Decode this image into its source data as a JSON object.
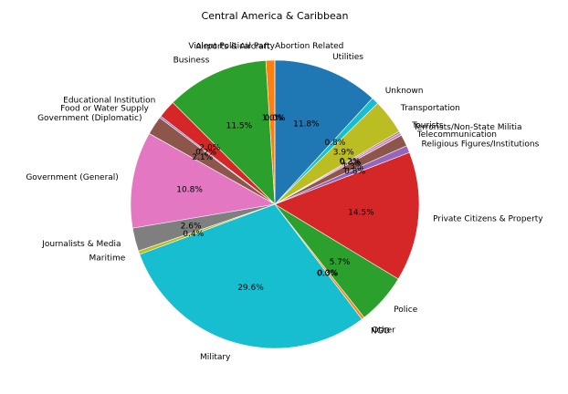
{
  "chart_data": {
    "type": "pie",
    "title": "Central America & Caribbean",
    "start_angle_deg": 90,
    "direction": "counterclockwise",
    "slices": [
      {
        "label": "Abortion Related",
        "value": 0.0,
        "pct_label": "0.0%",
        "color": "#1f77b4"
      },
      {
        "label": "Airports & Aircraft",
        "value": 1.0,
        "pct_label": "1.0%",
        "color": "#ff7f0e"
      },
      {
        "label": "Business",
        "value": 11.5,
        "pct_label": "11.5%",
        "color": "#2ca02c"
      },
      {
        "label": "Educational Institution",
        "value": 2.0,
        "pct_label": "2.0%",
        "color": "#d62728"
      },
      {
        "label": "Food or Water Supply",
        "value": 0.2,
        "pct_label": "0.2%",
        "color": "#9467bd"
      },
      {
        "label": "Government (Diplomatic)",
        "value": 2.1,
        "pct_label": "2.1%",
        "color": "#8c564b"
      },
      {
        "label": "Government (General)",
        "value": 10.8,
        "pct_label": "10.8%",
        "color": "#e377c2"
      },
      {
        "label": "Journalists & Media",
        "value": 2.6,
        "pct_label": "2.6%",
        "color": "#7f7f7f"
      },
      {
        "label": "Maritime",
        "value": 0.4,
        "pct_label": "0.4%",
        "color": "#bcbd22"
      },
      {
        "label": "Military",
        "value": 29.6,
        "pct_label": "29.6%",
        "color": "#17becf"
      },
      {
        "label": "NGO",
        "value": 0.0,
        "pct_label": "0.0%",
        "color": "#1f77b4"
      },
      {
        "label": "Other",
        "value": 0.3,
        "pct_label": "0.3%",
        "color": "#ff7f0e"
      },
      {
        "label": "Police",
        "value": 5.7,
        "pct_label": "5.7%",
        "color": "#2ca02c"
      },
      {
        "label": "Private Citizens & Property",
        "value": 14.5,
        "pct_label": "14.5%",
        "color": "#d62728"
      },
      {
        "label": "Religious Figures/Institutions",
        "value": 0.8,
        "pct_label": "0.8%",
        "color": "#9467bd"
      },
      {
        "label": "Telecommunication",
        "value": 1.3,
        "pct_label": "1.3%",
        "color": "#8c564b"
      },
      {
        "label": "Terrorists/Non-State Militia",
        "value": 0.3,
        "pct_label": "0.3%",
        "color": "#e377c2"
      },
      {
        "label": "Tourists",
        "value": 0.2,
        "pct_label": "0.2%",
        "color": "#7f7f7f"
      },
      {
        "label": "Transportation",
        "value": 3.9,
        "pct_label": "3.9%",
        "color": "#bcbd22"
      },
      {
        "label": "Unknown",
        "value": 0.8,
        "pct_label": "0.8%",
        "color": "#17becf"
      },
      {
        "label": "Utilities",
        "value": 11.8,
        "pct_label": "11.8%",
        "color": "#1f77b4"
      },
      {
        "label": "Violent Political Party",
        "value": 0.0,
        "pct_label": "0.0%",
        "color": "#ff7f0e"
      }
    ]
  }
}
